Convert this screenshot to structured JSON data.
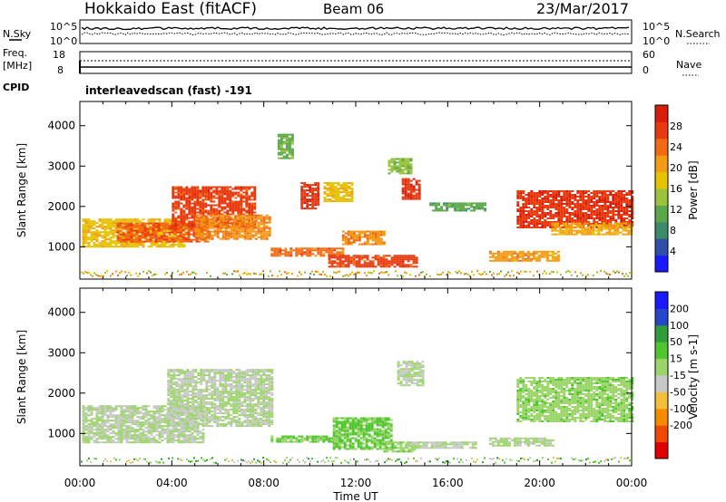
{
  "header": {
    "station": "Hokkaido East (fitACF)",
    "beam": "Beam 06",
    "date": "23/Mar/2017"
  },
  "noise_panel": {
    "left_label": "N.Sky",
    "right_label": "N.Search",
    "left_ticks": [
      "10^5",
      "10^0"
    ],
    "right_ticks": [
      "10^5",
      "10^0"
    ]
  },
  "freq_panel": {
    "left_label_1": "Freq.",
    "left_label_2": "[MHz]",
    "right_label": "Nave",
    "left_ticks": [
      "18",
      "8"
    ],
    "right_ticks": [
      "60",
      "0"
    ]
  },
  "cpid": {
    "label": "CPID",
    "value": "interleavedscan (fast) -191"
  },
  "chart_data": [
    {
      "type": "heatmap",
      "name": "power",
      "xlabel": "Time UT",
      "ylabel": "Slant Range [km]",
      "xlim_hours": [
        0,
        24
      ],
      "ylim_km": [
        200,
        4600
      ],
      "x_ticks": [
        "00:00",
        "04:00",
        "08:00",
        "12:00",
        "16:00",
        "20:00",
        "00:00"
      ],
      "y_ticks": [
        1000,
        2000,
        3000,
        4000
      ],
      "colorbar_label": "Power [dB]",
      "colorbar_ticks": [
        4,
        8,
        12,
        16,
        20,
        24,
        28
      ],
      "colorbar_range": [
        0,
        32
      ],
      "colors": [
        "#1a1aff",
        "#2f4fa8",
        "#3b8a6a",
        "#5aa84a",
        "#9bc33c",
        "#e6c200",
        "#f59a14",
        "#f26a12",
        "#e83a0e",
        "#d81e0a"
      ],
      "regions": [
        {
          "t0": 0.1,
          "t1": 4.6,
          "r0": 1000,
          "r1": 1700,
          "value": 18
        },
        {
          "t0": 1.6,
          "t1": 5.6,
          "r0": 1150,
          "r1": 1600,
          "value": 25
        },
        {
          "t0": 4.0,
          "t1": 7.6,
          "r0": 1500,
          "r1": 2500,
          "value": 27
        },
        {
          "t0": 5.0,
          "t1": 8.3,
          "r0": 1200,
          "r1": 1800,
          "value": 22
        },
        {
          "t0": 9.6,
          "t1": 10.4,
          "r0": 1950,
          "r1": 2600,
          "value": 28
        },
        {
          "t0": 10.6,
          "t1": 11.8,
          "r0": 2150,
          "r1": 2600,
          "value": 18
        },
        {
          "t0": 11.4,
          "t1": 13.2,
          "r0": 1050,
          "r1": 1400,
          "value": 22
        },
        {
          "t0": 8.3,
          "t1": 11.4,
          "r0": 780,
          "r1": 980,
          "value": 24
        },
        {
          "t0": 10.8,
          "t1": 14.6,
          "r0": 500,
          "r1": 800,
          "value": 27
        },
        {
          "t0": 14.0,
          "t1": 14.8,
          "r0": 2200,
          "r1": 2700,
          "value": 28
        },
        {
          "t0": 15.2,
          "t1": 17.6,
          "r0": 1900,
          "r1": 2100,
          "value": 11
        },
        {
          "t0": 17.8,
          "t1": 20.8,
          "r0": 650,
          "r1": 900,
          "value": 21
        },
        {
          "t0": 19.0,
          "t1": 24.0,
          "r0": 1500,
          "r1": 2400,
          "value": 28
        },
        {
          "t0": 20.5,
          "t1": 24.0,
          "r0": 1300,
          "r1": 1600,
          "value": 20
        },
        {
          "t0": 8.6,
          "t1": 9.3,
          "r0": 3200,
          "r1": 3800,
          "value": 12
        },
        {
          "t0": 13.4,
          "t1": 14.4,
          "r0": 2800,
          "r1": 3200,
          "value": 14
        }
      ]
    },
    {
      "type": "heatmap",
      "name": "velocity",
      "xlabel": "Time UT",
      "ylabel": "Slant Range [km]",
      "xlim_hours": [
        0,
        24
      ],
      "ylim_km": [
        200,
        4600
      ],
      "x_ticks": [
        "00:00",
        "04:00",
        "08:00",
        "12:00",
        "16:00",
        "20:00",
        "00:00"
      ],
      "y_ticks": [
        1000,
        2000,
        3000,
        4000
      ],
      "colorbar_label": "Velocity [m s-1]",
      "colorbar_ticks": [
        200,
        100,
        50,
        15,
        -15,
        -50,
        -100,
        -200
      ],
      "colorbar_range": [
        -250,
        250
      ],
      "colors": [
        "#e00000",
        "#ee4a00",
        "#f78b00",
        "#f3bf3a",
        "#c8c8c8",
        "#9cd56a",
        "#4fc52e",
        "#2e9d3a",
        "#2747c9",
        "#1a1aff"
      ],
      "regions": [
        {
          "t0": 0.1,
          "t1": 5.4,
          "r0": 800,
          "r1": 1700,
          "value": 0
        },
        {
          "t0": 3.8,
          "t1": 8.4,
          "r0": 1200,
          "r1": 2600,
          "value": 0
        },
        {
          "t0": 11.0,
          "t1": 13.6,
          "r0": 600,
          "r1": 1400,
          "value": 55
        },
        {
          "t0": 8.3,
          "t1": 11.3,
          "r0": 800,
          "r1": 950,
          "value": 45
        },
        {
          "t0": 13.2,
          "t1": 14.6,
          "r0": 550,
          "r1": 800,
          "value": 40
        },
        {
          "t0": 13.8,
          "t1": 14.9,
          "r0": 2200,
          "r1": 2800,
          "value": 0
        },
        {
          "t0": 19.0,
          "t1": 24.0,
          "r0": 1300,
          "r1": 2400,
          "value": 30
        },
        {
          "t0": 17.8,
          "t1": 20.6,
          "r0": 700,
          "r1": 900,
          "value": 10
        },
        {
          "t0": 14.2,
          "t1": 17.2,
          "r0": 650,
          "r1": 800,
          "value": 0
        }
      ]
    }
  ]
}
